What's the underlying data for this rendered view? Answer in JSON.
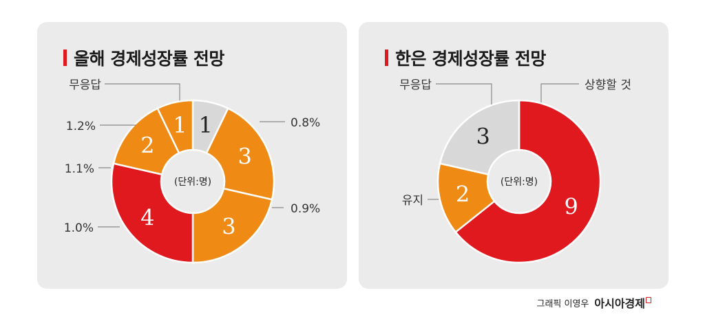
{
  "colors": {
    "red": "#e0191f",
    "orange": "#ef8a14",
    "gray": "#d8d8d8",
    "label_dark": "#333333",
    "leader": "#888888"
  },
  "chart_data": [
    {
      "type": "pie",
      "title": "올해 경제성장률 전망",
      "unit_label": "(단위:명)",
      "slices": [
        {
          "label": "무응답",
          "value": 1,
          "color": "#d8d8d8"
        },
        {
          "label": "0.8%",
          "value": 3,
          "color": "#ef8a14"
        },
        {
          "label": "0.9%",
          "value": 3,
          "color": "#ef8a14"
        },
        {
          "label": "1.0%",
          "value": 4,
          "color": "#e0191f"
        },
        {
          "label": "1.1%",
          "value": 2,
          "color": "#ef8a14"
        },
        {
          "label": "1.2%",
          "value": 1,
          "color": "#ef8a14"
        }
      ]
    },
    {
      "type": "pie",
      "title": "한은 경제성장률 전망",
      "unit_label": "(단위:명)",
      "slices": [
        {
          "label": "상향할 것",
          "value": 9,
          "color": "#e0191f"
        },
        {
          "label": "유지",
          "value": 2,
          "color": "#ef8a14"
        },
        {
          "label": "무응답",
          "value": 3,
          "color": "#d8d8d8"
        }
      ]
    }
  ],
  "credit": {
    "text": "그래픽 이영우",
    "brand": "아시아경제"
  }
}
